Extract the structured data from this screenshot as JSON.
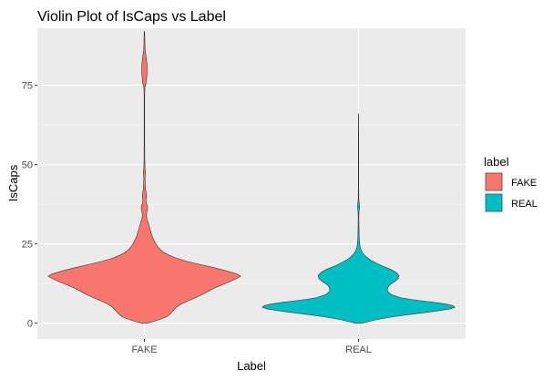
{
  "chart_data": {
    "type": "violin",
    "title": "Violin Plot of IsCaps vs Label",
    "xlabel": "Label",
    "ylabel": "IsCaps",
    "categories": [
      "FAKE",
      "REAL"
    ],
    "y_ticks": [
      0,
      25,
      50,
      75
    ],
    "y_tick_labels": [
      "0",
      "25",
      "50",
      "75"
    ],
    "ylim": [
      -5,
      93
    ],
    "grid": true,
    "legend": {
      "title": "label",
      "position": "right",
      "entries": [
        {
          "label": "FAKE",
          "color": "#F8766D"
        },
        {
          "label": "REAL",
          "color": "#00BFC4"
        }
      ]
    },
    "series": [
      {
        "category": "FAKE",
        "color": "#F8766D",
        "y_min": 0,
        "y_max": 92,
        "density": [
          [
            0,
            0.03
          ],
          [
            0.5,
            0.09
          ],
          [
            1.0,
            0.14
          ],
          [
            1.5,
            0.19
          ],
          [
            2.0,
            0.23
          ],
          [
            3.0,
            0.27
          ],
          [
            4.0,
            0.3
          ],
          [
            5.0,
            0.33
          ],
          [
            6.0,
            0.38
          ],
          [
            7.0,
            0.45
          ],
          [
            8.0,
            0.53
          ],
          [
            9.0,
            0.6
          ],
          [
            10.0,
            0.66
          ],
          [
            11.0,
            0.72
          ],
          [
            12.0,
            0.8
          ],
          [
            13.0,
            0.88
          ],
          [
            14.0,
            0.95
          ],
          [
            14.8,
            1.0
          ],
          [
            15.5,
            0.96
          ],
          [
            16.5,
            0.85
          ],
          [
            17.5,
            0.72
          ],
          [
            18.5,
            0.58
          ],
          [
            19.5,
            0.44
          ],
          [
            20.5,
            0.33
          ],
          [
            21.5,
            0.25
          ],
          [
            22.5,
            0.19
          ],
          [
            24.0,
            0.14
          ],
          [
            25.5,
            0.11
          ],
          [
            27.0,
            0.085
          ],
          [
            28.5,
            0.07
          ],
          [
            30.0,
            0.055
          ],
          [
            31.5,
            0.04
          ],
          [
            33.0,
            0.025
          ],
          [
            34.0,
            0.02
          ],
          [
            35.0,
            0.025
          ],
          [
            36.0,
            0.033
          ],
          [
            37.0,
            0.03
          ],
          [
            38.0,
            0.018
          ],
          [
            39.0,
            0.016
          ],
          [
            40.0,
            0.022
          ],
          [
            41.0,
            0.018
          ],
          [
            42.0,
            0.012
          ],
          [
            44.0,
            0.008
          ],
          [
            46.0,
            0.006
          ],
          [
            47.5,
            0.012
          ],
          [
            49.0,
            0.006
          ],
          [
            52.0,
            0.004
          ],
          [
            56.0,
            0.003
          ],
          [
            60.0,
            0.003
          ],
          [
            64.0,
            0.003
          ],
          [
            68.0,
            0.003
          ],
          [
            72.0,
            0.003
          ],
          [
            74.5,
            0.006
          ],
          [
            75.5,
            0.016
          ],
          [
            77.0,
            0.022
          ],
          [
            79.0,
            0.027
          ],
          [
            81.0,
            0.028
          ],
          [
            83.0,
            0.022
          ],
          [
            84.5,
            0.015
          ],
          [
            86.0,
            0.008
          ],
          [
            88.0,
            0.005
          ],
          [
            90.0,
            0.004
          ],
          [
            92.0,
            0.002
          ]
        ]
      },
      {
        "category": "REAL",
        "color": "#00BFC4",
        "y_min": 0,
        "y_max": 66,
        "density": [
          [
            0,
            0.04
          ],
          [
            0.5,
            0.1
          ],
          [
            1.0,
            0.17
          ],
          [
            1.5,
            0.26
          ],
          [
            2.0,
            0.36
          ],
          [
            2.5,
            0.47
          ],
          [
            3.0,
            0.6
          ],
          [
            3.5,
            0.73
          ],
          [
            4.0,
            0.85
          ],
          [
            4.5,
            0.95
          ],
          [
            5.0,
            1.0
          ],
          [
            5.5,
            0.98
          ],
          [
            6.0,
            0.91
          ],
          [
            6.5,
            0.8
          ],
          [
            7.0,
            0.67
          ],
          [
            7.5,
            0.54
          ],
          [
            8.0,
            0.44
          ],
          [
            9.0,
            0.34
          ],
          [
            10.0,
            0.3
          ],
          [
            11.0,
            0.3
          ],
          [
            12.0,
            0.32
          ],
          [
            13.0,
            0.37
          ],
          [
            14.0,
            0.41
          ],
          [
            15.0,
            0.42
          ],
          [
            16.0,
            0.39
          ],
          [
            17.0,
            0.33
          ],
          [
            18.0,
            0.25
          ],
          [
            19.0,
            0.18
          ],
          [
            20.0,
            0.12
          ],
          [
            21.0,
            0.075
          ],
          [
            22.0,
            0.045
          ],
          [
            23.0,
            0.027
          ],
          [
            24.0,
            0.016
          ],
          [
            26.0,
            0.009
          ],
          [
            28.0,
            0.006
          ],
          [
            30.0,
            0.005
          ],
          [
            31.5,
            0.004
          ],
          [
            33.0,
            0.003
          ],
          [
            35.0,
            0.005
          ],
          [
            36.5,
            0.011
          ],
          [
            37.5,
            0.009
          ],
          [
            39.0,
            0.003
          ],
          [
            43.0,
            0.002
          ],
          [
            50.0,
            0.002
          ],
          [
            58.0,
            0.002
          ],
          [
            66.0,
            0.001
          ]
        ]
      }
    ]
  }
}
